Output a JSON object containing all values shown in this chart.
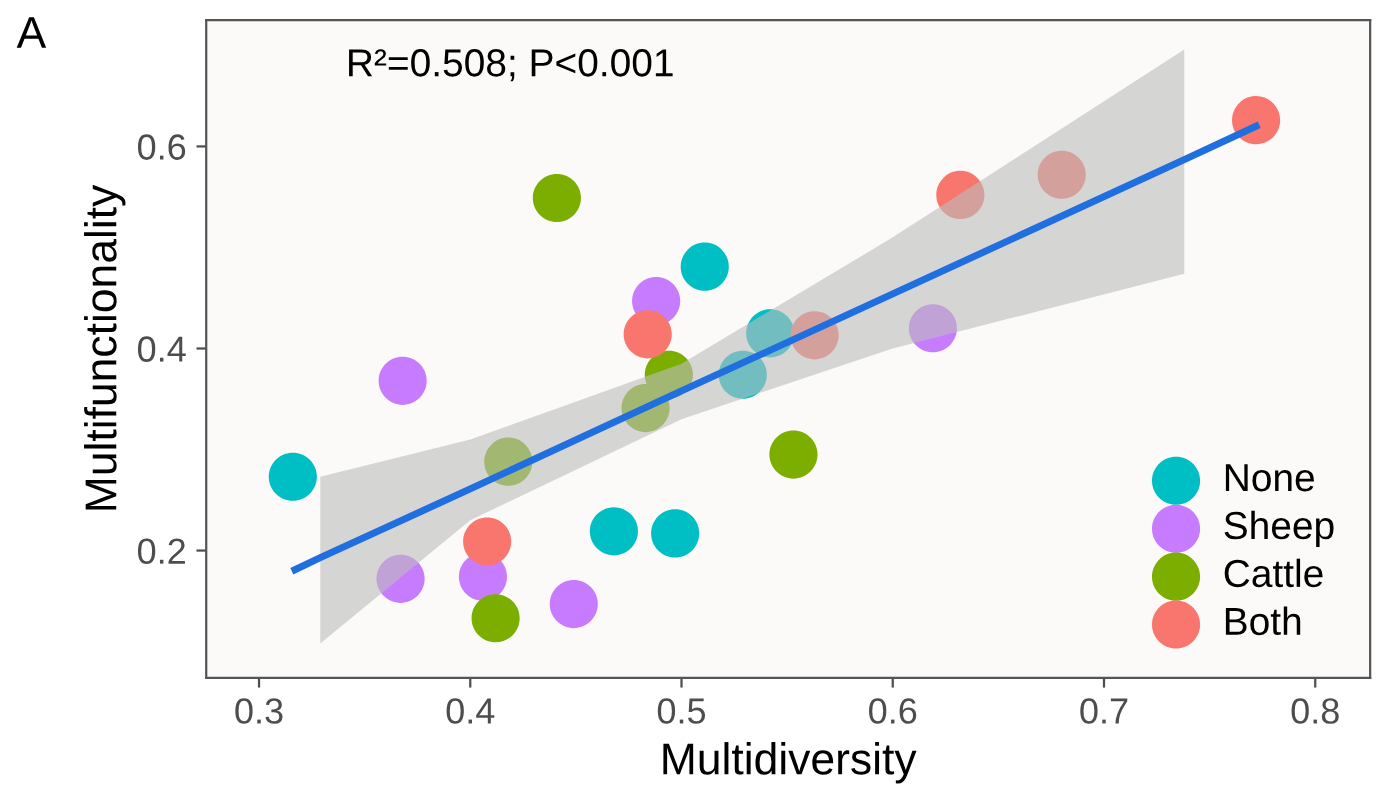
{
  "chart_data": {
    "type": "scatter",
    "xlabel": "Multidiversity",
    "ylabel": "Multifunctionality",
    "annotations": [
      "A",
      "R²=0.508; P<0.001"
    ],
    "xlim": [
      0.275,
      0.826
    ],
    "ylim": [
      0.074,
      0.725
    ],
    "xticks": [
      0.3,
      0.4,
      0.5,
      0.6,
      0.7,
      0.8
    ],
    "yticks": [
      0.2,
      0.4,
      0.6
    ],
    "grid": false,
    "legend": "bottom right",
    "marker": "circle",
    "series": [
      {
        "name": "None",
        "color": "#00bfc4",
        "x": [
          0.316,
          0.511,
          0.542,
          0.529,
          0.468,
          0.497
        ],
        "values": [
          0.273,
          0.481,
          0.415,
          0.374,
          0.219,
          0.217
        ]
      },
      {
        "name": "Sheep",
        "color": "#c77cff",
        "x": [
          0.368,
          0.488,
          0.367,
          0.406,
          0.449,
          0.619
        ],
        "values": [
          0.368,
          0.447,
          0.172,
          0.174,
          0.147,
          0.42
        ]
      },
      {
        "name": "Cattle",
        "color": "#7cae00",
        "x": [
          0.441,
          0.494,
          0.483,
          0.418,
          0.412,
          0.553
        ],
        "values": [
          0.549,
          0.374,
          0.341,
          0.288,
          0.133,
          0.295
        ]
      },
      {
        "name": "Both",
        "color": "#f8766d",
        "x": [
          0.484,
          0.408,
          0.772,
          0.632,
          0.68,
          0.563
        ],
        "values": [
          0.414,
          0.209,
          0.626,
          0.552,
          0.572,
          0.413
        ]
      },
      {
        "type": "line",
        "marker": "none",
        "color": "#1f6fe0",
        "x": [
          0.317,
          0.329,
          0.4,
          0.5,
          0.6,
          0.738,
          0.772
        ],
        "values": [
          0.181,
          0.193,
          0.261,
          0.358,
          0.454,
          0.587,
          0.62
        ],
        "lower": [
          null,
          0.108,
          0.23,
          0.33,
          0.4,
          0.474,
          null
        ],
        "upper": [
          null,
          0.273,
          0.31,
          0.385,
          0.51,
          0.696,
          null
        ]
      }
    ]
  }
}
